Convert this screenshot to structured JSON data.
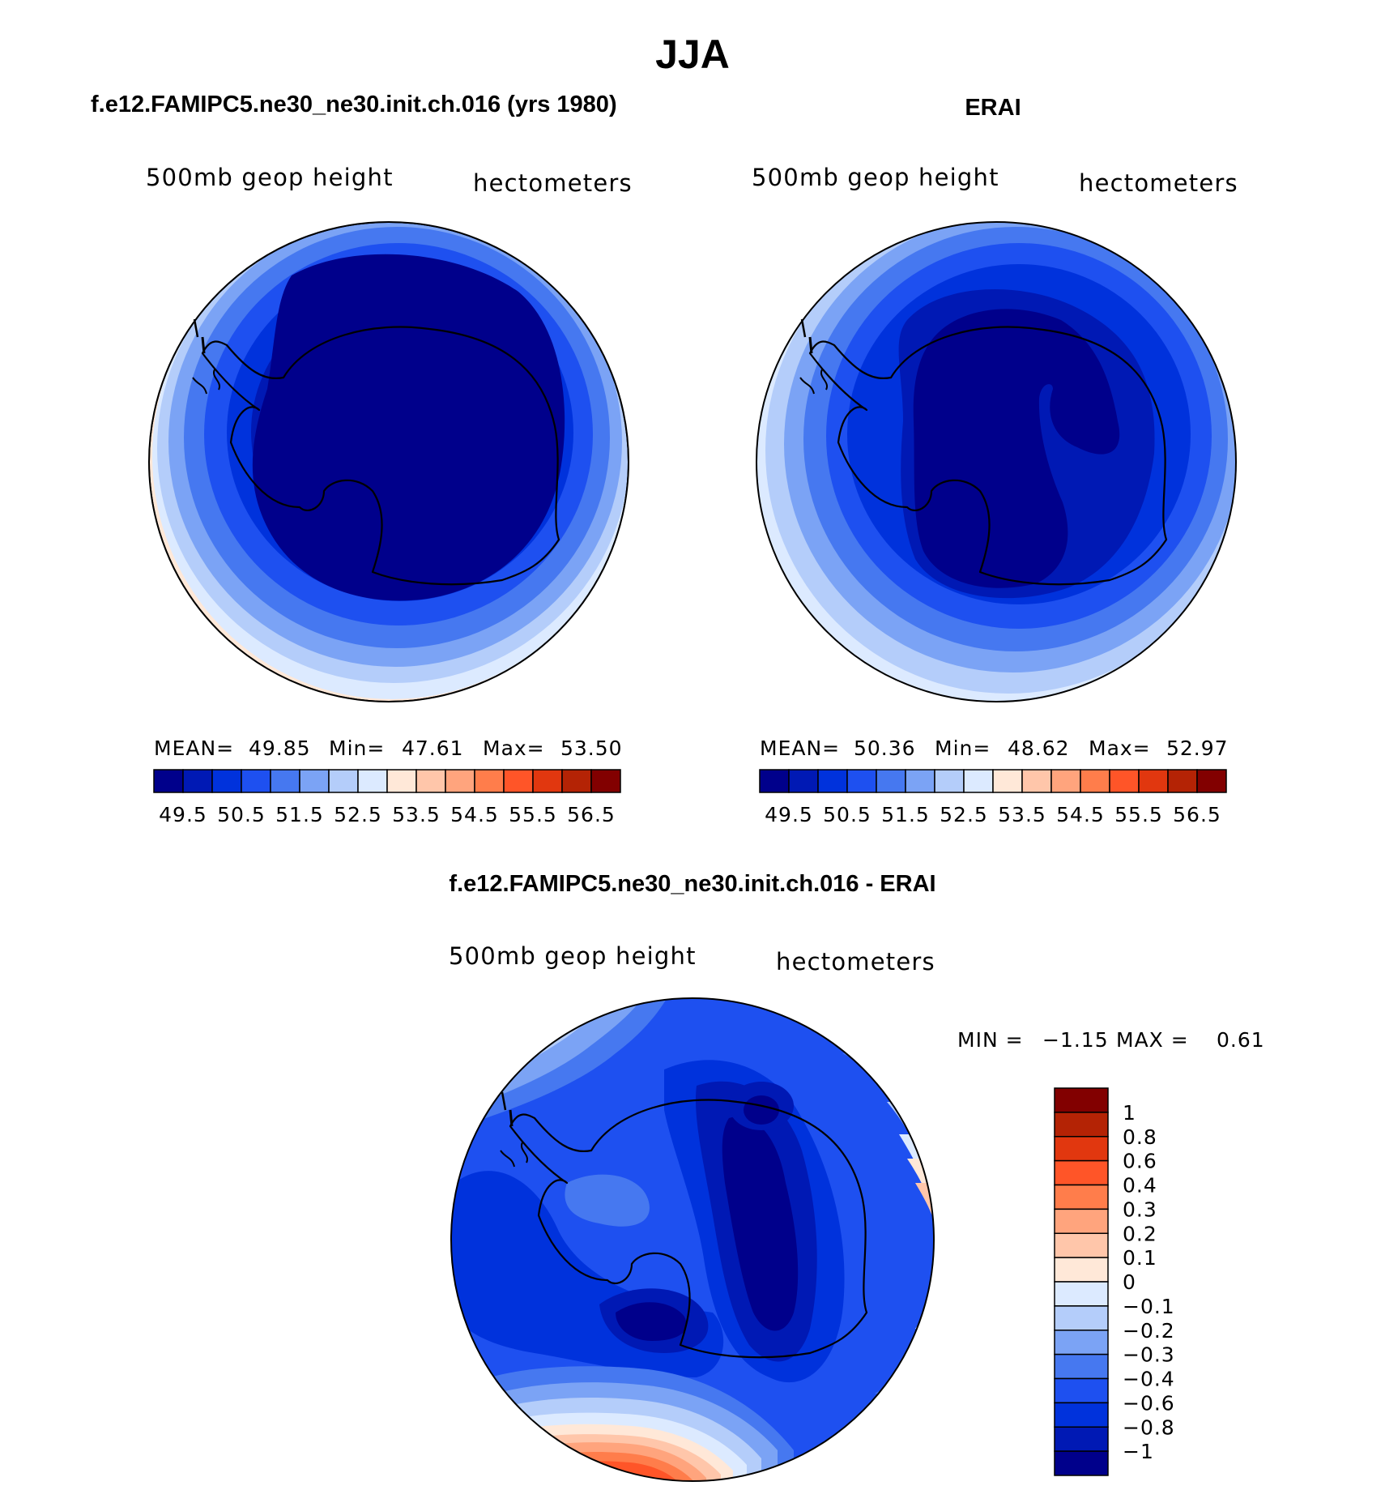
{
  "figure": {
    "title": "JJA",
    "panel_left_title": "f.e12.FAMIPC5.ne30_ne30.init.ch.016 (yrs 1980)",
    "panel_right_title": "ERAI",
    "panel_diff_title": "f.e12.FAMIPC5.ne30_ne30.init.ch.016 - ERAI"
  },
  "panels": [
    {
      "id": "model",
      "variable_label": "500mb geop height",
      "units_label": "hectometers",
      "stats": {
        "mean_label": "MEAN=",
        "mean": "49.85",
        "min_label": "Min=",
        "min": "47.61",
        "max_label": "Max=",
        "max": "53.50"
      },
      "field_fill_order": [
        2,
        3,
        4,
        5,
        6,
        7,
        8
      ],
      "field_base_level": 0
    },
    {
      "id": "erai",
      "variable_label": "500mb geop height",
      "units_label": "hectometers",
      "stats": {
        "mean_label": "MEAN=",
        "mean": "50.36",
        "min_label": "Min=",
        "min": "48.62",
        "max_label": "Max=",
        "max": "52.97"
      },
      "field_fill_order": [
        2,
        3,
        4,
        5,
        6,
        7
      ],
      "field_base_level": 1
    }
  ],
  "abs_colorbar": {
    "colors": [
      "#00008b",
      "#0019b4",
      "#0032dc",
      "#1e50f0",
      "#4678f0",
      "#7ba3f5",
      "#b4cdfa",
      "#dceaff",
      "#ffe8d8",
      "#ffc6aa",
      "#ffa47d",
      "#ff7d4b",
      "#ff5528",
      "#e1370f",
      "#b42305",
      "#820000"
    ],
    "tick_labels": [
      "49.5",
      "50.5",
      "51.5",
      "52.5",
      "53.5",
      "54.5",
      "55.5",
      "56.5"
    ]
  },
  "diff_panel": {
    "variable_label": "500mb geop height",
    "units_label": "hectometers",
    "minmax": {
      "min_label": "MIN =",
      "min": "−1.15",
      "max_label": "MAX =",
      "max": "0.61"
    },
    "colors": [
      "#820000",
      "#b42305",
      "#e1370f",
      "#ff5528",
      "#ff7d4b",
      "#ffa47d",
      "#ffc6aa",
      "#ffe8d8",
      "#dceaff",
      "#b4cdfa",
      "#7ba3f5",
      "#4678f0",
      "#1e50f0",
      "#0032dc",
      "#0019b4",
      "#00008b"
    ],
    "tick_labels": [
      "1",
      "0.8",
      "0.6",
      "0.4",
      "0.3",
      "0.2",
      "0.1",
      "0",
      "−0.1",
      "−0.2",
      "−0.3",
      "−0.4",
      "−0.6",
      "−0.8",
      "−1"
    ]
  }
}
